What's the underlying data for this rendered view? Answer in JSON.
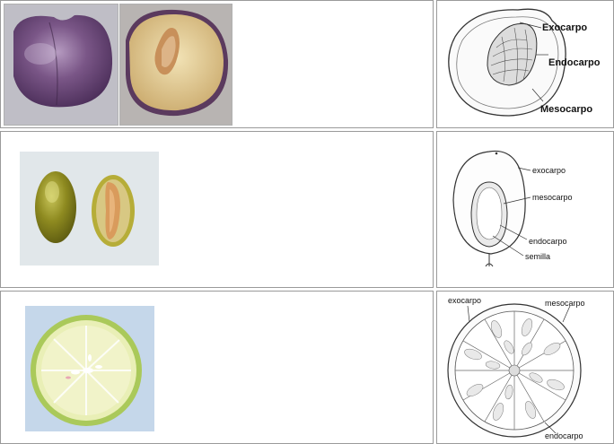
{
  "rows": [
    {
      "name": "plum",
      "diagram_labels": {
        "exocarp": "Exocarpo",
        "endocarp": "Endocarpo",
        "mesocarp": "Mesocarpo"
      }
    },
    {
      "name": "olive",
      "diagram_labels": {
        "exocarp": "exocarpo",
        "mesocarp": "mesocarpo",
        "endocarp": "endocarpo",
        "seed": "semilla"
      }
    },
    {
      "name": "lemon",
      "diagram_labels": {
        "exocarp": "exocarpo",
        "mesocarp": "mesocarpo",
        "endocarp": "endocarpo"
      }
    }
  ],
  "colors": {
    "border": "#9a9a9a",
    "plum_skin": "#6e4a78",
    "plum_flesh": "#e8d29a",
    "olive_green": "#8c8a1e",
    "lemon_rind": "#cfe08c"
  }
}
